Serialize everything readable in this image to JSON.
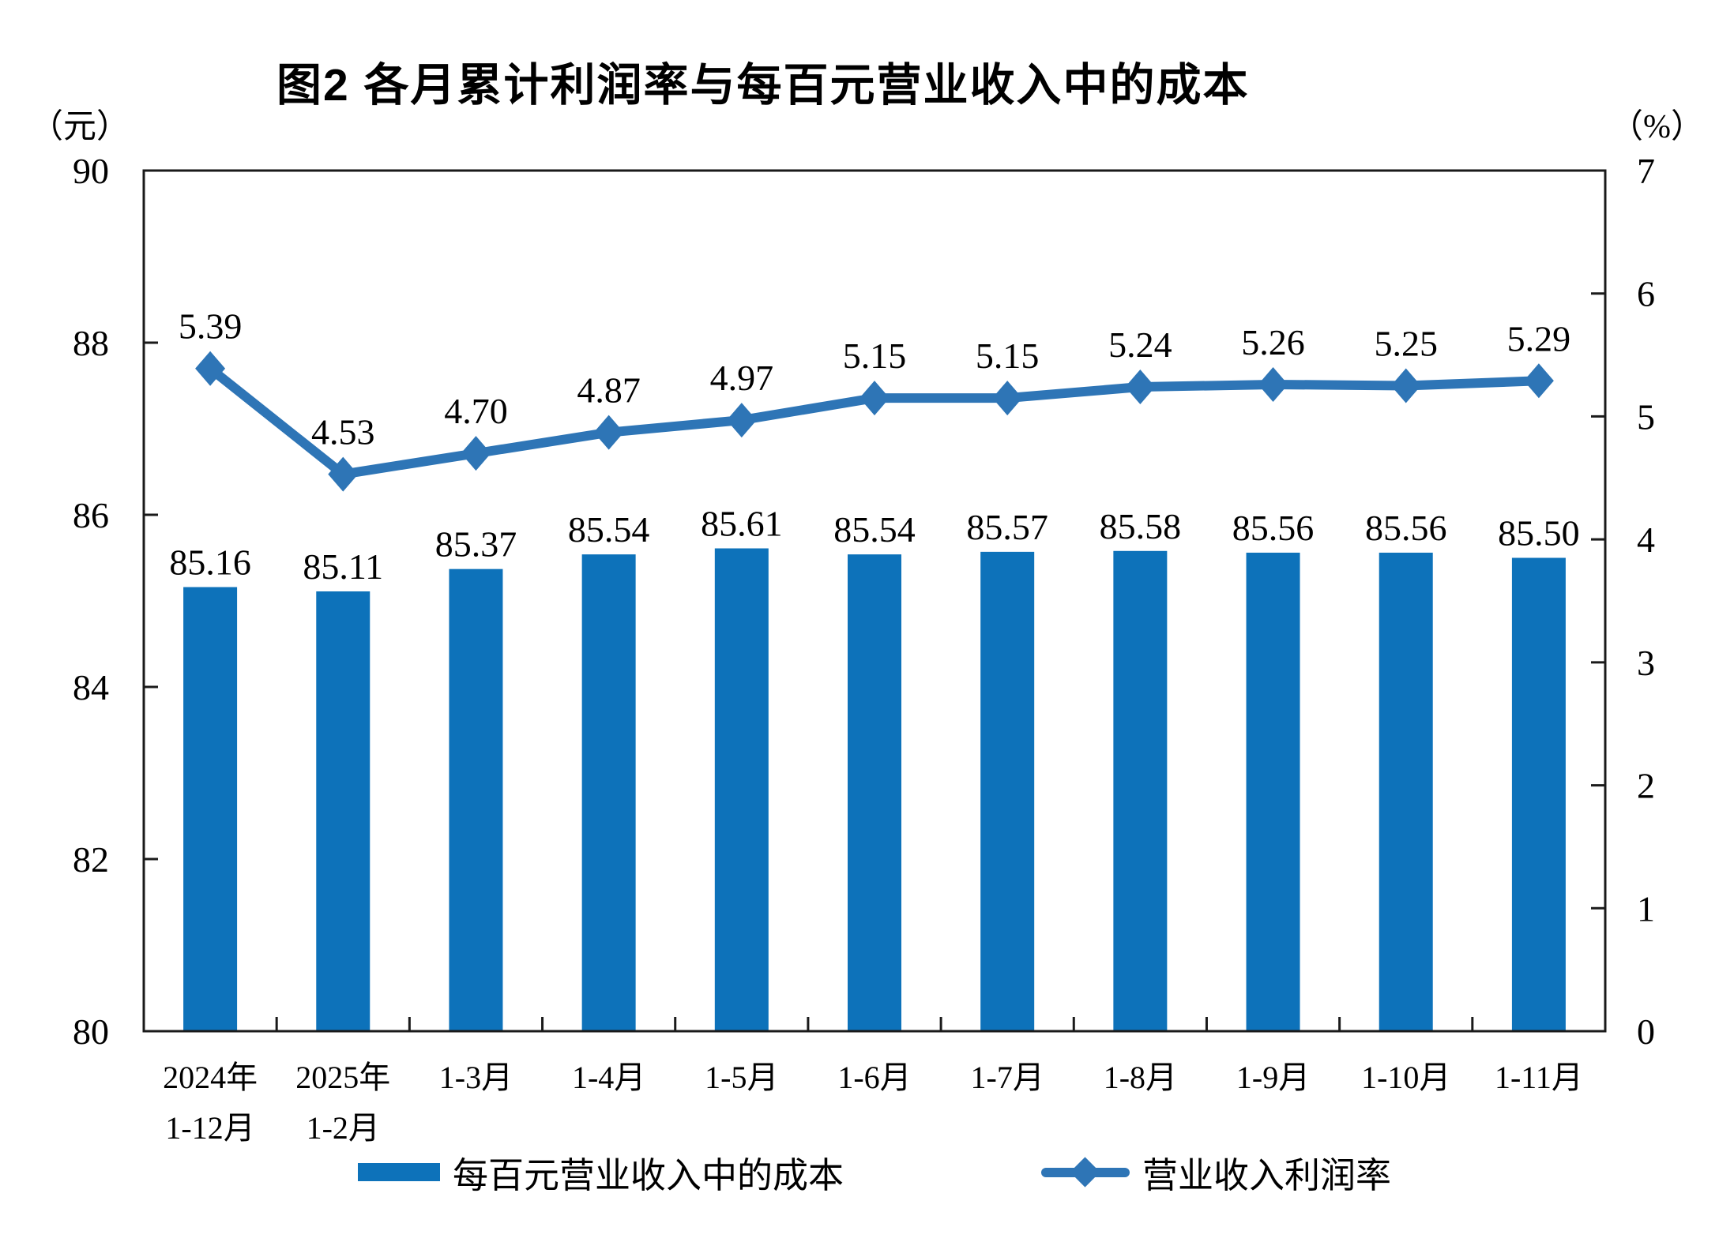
{
  "title": "图2 各月累计利润率与每百元营业收入中的成本",
  "left_axis_unit": "（元）",
  "right_axis_unit": "（%）",
  "colors": {
    "bar": "#0D72BA",
    "line": "#2E75B6",
    "axis": "#1a1a1a",
    "text": "#000000"
  },
  "legend": {
    "bar_label": "每百元营业收入中的成本",
    "line_label": "营业收入利润率"
  },
  "chart_data": {
    "type": "bar",
    "subtype": "bar-line-combo",
    "title": "图2 各月累计利润率与每百元营业收入中的成本",
    "categories": [
      [
        "2024年",
        "1-12月"
      ],
      [
        "2025年",
        "1-2月"
      ],
      [
        "1-3月"
      ],
      [
        "1-4月"
      ],
      [
        "1-5月"
      ],
      [
        "1-6月"
      ],
      [
        "1-7月"
      ],
      [
        "1-8月"
      ],
      [
        "1-9月"
      ],
      [
        "1-10月"
      ],
      [
        "1-11月"
      ]
    ],
    "series": [
      {
        "name": "每百元营业收入中的成本",
        "type": "bar",
        "axis": "left",
        "values": [
          85.16,
          85.11,
          85.37,
          85.54,
          85.61,
          85.54,
          85.57,
          85.58,
          85.56,
          85.56,
          85.5
        ]
      },
      {
        "name": "营业收入利润率",
        "type": "line",
        "axis": "right",
        "values": [
          5.39,
          4.53,
          4.7,
          4.87,
          4.97,
          5.15,
          5.15,
          5.24,
          5.26,
          5.25,
          5.29
        ]
      }
    ],
    "left_axis": {
      "label": "（元）",
      "min": 80,
      "max": 90,
      "ticks": [
        90,
        88,
        86,
        84,
        82,
        80
      ]
    },
    "right_axis": {
      "label": "（%）",
      "min": 0,
      "max": 7,
      "ticks": [
        7,
        6,
        5,
        4,
        3,
        2,
        1,
        0
      ]
    },
    "grid": false,
    "legend_position": "bottom",
    "data_labels": true
  }
}
